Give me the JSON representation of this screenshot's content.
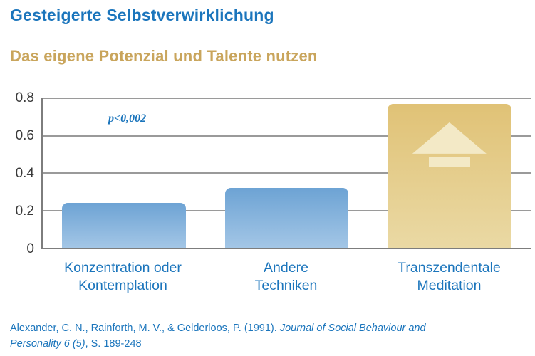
{
  "header": {
    "title": "Gesteigerte Selbstverwirklichung",
    "subtitle": "Das eigene Potenzial und Talente nutzen"
  },
  "chart_data": {
    "type": "bar",
    "title": "Gesteigerte Selbstverwirklichung",
    "subtitle": "Das eigene Potenzial und Talente nutzen",
    "categories": [
      "Konzentration oder\nKontemplation",
      "Andere\nTechniken",
      "Transzendentale\nMeditation"
    ],
    "values": [
      0.24,
      0.32,
      0.77
    ],
    "ylim": [
      0,
      0.8
    ],
    "yticks": [
      {
        "label": "0",
        "value": 0
      },
      {
        "label": "0.2",
        "value": 0.2
      },
      {
        "label": "0.4",
        "value": 0.4
      },
      {
        "label": "0.6",
        "value": 0.6
      },
      {
        "label": "0.8",
        "value": 0.8
      }
    ],
    "annotation": "p<0,002",
    "grid": true,
    "legend": false,
    "xlabel": "",
    "ylabel": "",
    "bar_gradients": [
      [
        "#6da3d4",
        "#a3c6e6"
      ],
      [
        "#6da3d4",
        "#a3c6e6"
      ],
      [
        "#e0c276",
        "#ead9a4"
      ]
    ],
    "arrow_bar_index": 2,
    "arrow_color": "#f3e9c6"
  },
  "colors": {
    "title_blue": "#1b75bc",
    "subtitle_gold": "#c9a55c",
    "axis": "#7d7d7d",
    "gridline": "#9a9a9a",
    "x_label_blue": "#1b75bc"
  },
  "citation": {
    "plain": "Alexander, C. N., Rainforth, M. V., & Gelderloos, P. (1991). ",
    "italic": "Journal of Social Behaviour and Personality 6 (5)",
    "tail": ", S. 189-248"
  }
}
